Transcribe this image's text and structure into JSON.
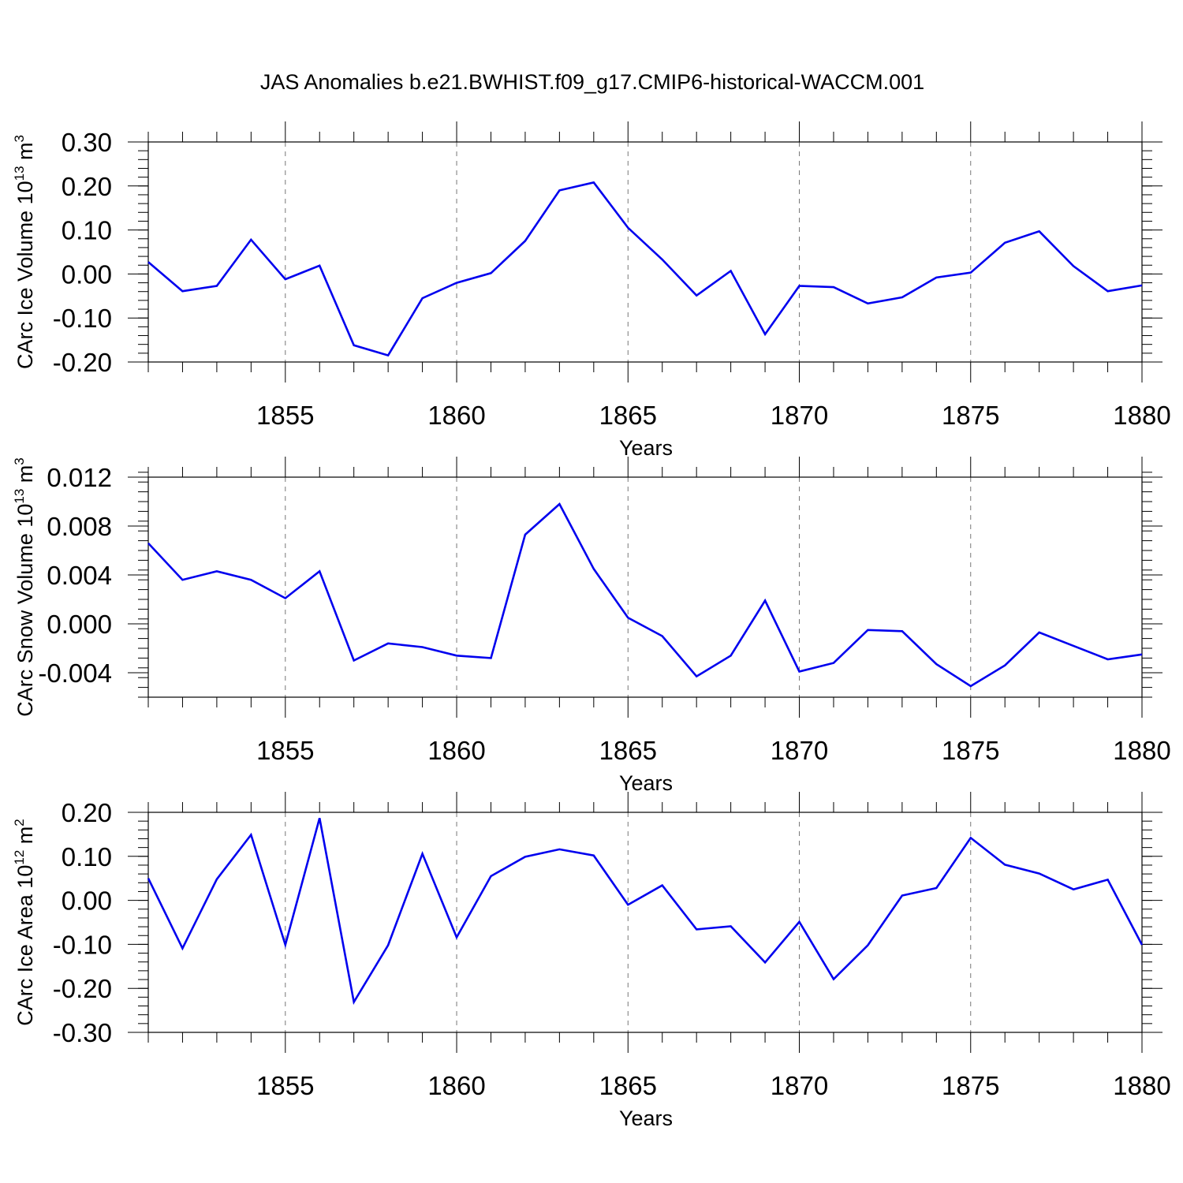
{
  "title": "JAS Anomalies b.e21.BWHIST.f09_g17.CMIP6-historical-WACCM.001",
  "colors": {
    "line": "#0000ee",
    "axis": "#000000",
    "grid": "#777777"
  },
  "chart_data": [
    {
      "type": "line",
      "name": "ice-volume",
      "ylabel_parts": [
        "CArc Ice Volume 10",
        "13",
        " m",
        "3"
      ],
      "xlabel": "Years",
      "xlim": [
        1851,
        1880
      ],
      "ylim": [
        -0.2,
        0.3
      ],
      "yticks": [
        -0.2,
        -0.1,
        0.0,
        0.1,
        0.2,
        0.3
      ],
      "ytick_labels": [
        "-0.20",
        "-0.10",
        "0.00",
        "0.10",
        "0.20",
        "0.30"
      ],
      "xticks": [
        1855,
        1860,
        1865,
        1870,
        1875,
        1880
      ],
      "xtick_labels": [
        "1855",
        "1860",
        "1865",
        "1870",
        "1875",
        "1880"
      ],
      "x": [
        1851,
        1852,
        1853,
        1854,
        1855,
        1856,
        1857,
        1858,
        1859,
        1860,
        1861,
        1862,
        1863,
        1864,
        1865,
        1866,
        1867,
        1868,
        1869,
        1870,
        1871,
        1872,
        1873,
        1874,
        1875,
        1876,
        1877,
        1878,
        1879,
        1880
      ],
      "values": [
        0.027,
        -0.039,
        -0.027,
        0.078,
        -0.012,
        0.019,
        -0.162,
        -0.185,
        -0.055,
        -0.02,
        0.002,
        0.075,
        0.19,
        0.208,
        0.105,
        0.033,
        -0.049,
        0.007,
        -0.137,
        -0.027,
        -0.03,
        -0.067,
        -0.053,
        -0.008,
        0.003,
        0.071,
        0.097,
        0.018,
        -0.039,
        -0.026
      ]
    },
    {
      "type": "line",
      "name": "snow-volume",
      "ylabel_parts": [
        "CArc Snow Volume 10",
        "13",
        " m",
        "3"
      ],
      "xlabel": "Years",
      "xlim": [
        1851,
        1880
      ],
      "ylim": [
        -0.006,
        0.012
      ],
      "yticks": [
        -0.004,
        0.0,
        0.004,
        0.008,
        0.012
      ],
      "ytick_labels": [
        "-0.004",
        "0.000",
        "0.004",
        "0.008",
        "0.012"
      ],
      "xticks": [
        1855,
        1860,
        1865,
        1870,
        1875,
        1880
      ],
      "xtick_labels": [
        "1855",
        "1860",
        "1865",
        "1870",
        "1875",
        "1880"
      ],
      "x": [
        1851,
        1852,
        1853,
        1854,
        1855,
        1856,
        1857,
        1858,
        1859,
        1860,
        1861,
        1862,
        1863,
        1864,
        1865,
        1866,
        1867,
        1868,
        1869,
        1870,
        1871,
        1872,
        1873,
        1874,
        1875,
        1876,
        1877,
        1878,
        1879,
        1880
      ],
      "values": [
        0.0066,
        0.0036,
        0.0043,
        0.0036,
        0.0021,
        0.0043,
        -0.003,
        -0.0016,
        -0.0019,
        -0.0026,
        -0.0028,
        0.0073,
        0.0098,
        0.0045,
        0.0005,
        -0.001,
        -0.0043,
        -0.0026,
        0.0019,
        -0.0039,
        -0.0032,
        -0.0005,
        -0.0006,
        -0.0033,
        -0.0051,
        -0.0034,
        -0.0007,
        -0.0018,
        -0.0029,
        -0.0025
      ]
    },
    {
      "type": "line",
      "name": "ice-area",
      "ylabel_parts": [
        "CArc Ice Area 10",
        "12",
        " m",
        "2"
      ],
      "xlabel": "Years",
      "xlim": [
        1851,
        1880
      ],
      "ylim": [
        -0.3,
        0.2
      ],
      "yticks": [
        -0.3,
        -0.2,
        -0.1,
        0.0,
        0.1,
        0.2
      ],
      "ytick_labels": [
        "-0.30",
        "-0.20",
        "-0.10",
        "0.00",
        "0.10",
        "0.20"
      ],
      "xticks": [
        1855,
        1860,
        1865,
        1870,
        1875,
        1880
      ],
      "xtick_labels": [
        "1855",
        "1860",
        "1865",
        "1870",
        "1875",
        "1880"
      ],
      "x": [
        1851,
        1852,
        1853,
        1854,
        1855,
        1856,
        1857,
        1858,
        1859,
        1860,
        1861,
        1862,
        1863,
        1864,
        1865,
        1866,
        1867,
        1868,
        1869,
        1870,
        1871,
        1872,
        1873,
        1874,
        1875,
        1876,
        1877,
        1878,
        1879,
        1880
      ],
      "values": [
        0.05,
        -0.109,
        0.048,
        0.149,
        -0.101,
        0.187,
        -0.231,
        -0.102,
        0.106,
        -0.084,
        0.055,
        0.099,
        0.116,
        0.102,
        -0.01,
        0.034,
        -0.066,
        -0.059,
        -0.141,
        -0.049,
        -0.179,
        -0.102,
        0.011,
        0.028,
        0.142,
        0.081,
        0.061,
        0.025,
        0.047,
        -0.101
      ]
    }
  ]
}
